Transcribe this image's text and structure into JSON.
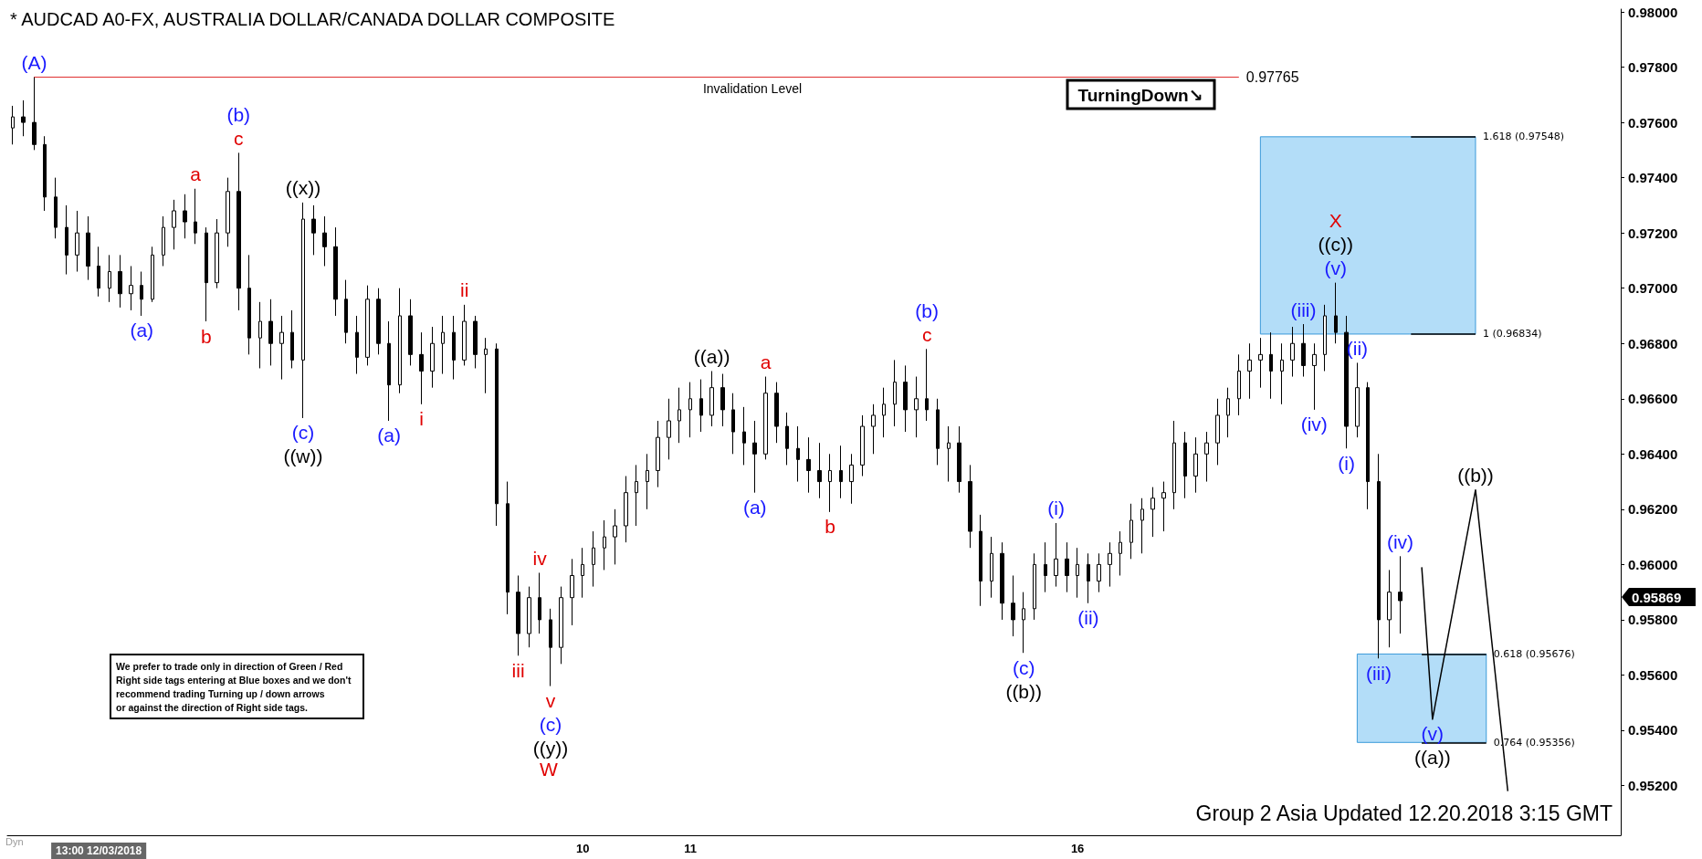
{
  "chart_data": {
    "type": "candlestick",
    "title": "* AUDCAD A0-FX, AUSTRALIA DOLLAR/CANADA DOLLAR COMPOSITE",
    "color": "#000000",
    "categories": [
      null,
      null,
      null,
      null,
      null,
      null,
      null,
      null,
      "13:00 12/03/2018",
      null,
      null,
      null,
      null,
      null,
      null,
      null,
      null,
      null,
      null,
      null,
      null,
      null,
      null,
      null,
      null,
      null,
      null,
      null,
      null,
      null,
      null,
      null,
      null,
      null,
      null,
      null,
      null,
      null,
      null,
      null,
      null,
      null,
      null,
      null,
      null,
      null,
      null,
      null,
      null,
      null,
      null,
      null,
      null,
      "10",
      null,
      null,
      null,
      null,
      null,
      null,
      null,
      null,
      null,
      "11",
      null,
      null,
      null,
      null,
      null,
      null,
      null,
      null,
      null,
      null,
      null,
      null,
      null,
      null,
      null,
      null,
      null,
      null,
      null,
      null,
      null,
      null,
      null,
      null,
      null,
      null,
      null,
      null,
      null,
      null,
      null,
      null,
      null,
      null,
      null,
      "16",
      null,
      null,
      null,
      null,
      null,
      null,
      null,
      null,
      null,
      null,
      null,
      null,
      null,
      null,
      null,
      null,
      null,
      null,
      null,
      null,
      null,
      null,
      null,
      null,
      null,
      null,
      null,
      null,
      null,
      null,
      null,
      null,
      null,
      null,
      null,
      null,
      null,
      null,
      null,
      null,
      null,
      null,
      null,
      null,
      null,
      null,
      null,
      null,
      null,
      null
    ],
    "ohlc": [
      [
        0.9758,
        0.9766,
        0.9752,
        0.9762
      ],
      [
        0.9762,
        0.9768,
        0.9755,
        0.976
      ],
      [
        0.976,
        0.97765,
        0.975,
        0.9752
      ],
      [
        0.9752,
        0.9755,
        0.9728,
        0.9733
      ],
      [
        0.9733,
        0.974,
        0.9718,
        0.9722
      ],
      [
        0.9722,
        0.973,
        0.9705,
        0.9712
      ],
      [
        0.9712,
        0.9728,
        0.9706,
        0.972
      ],
      [
        0.972,
        0.9726,
        0.9703,
        0.9708
      ],
      [
        0.9708,
        0.9715,
        0.9697,
        0.97
      ],
      [
        0.97,
        0.9712,
        0.9695,
        0.9706
      ],
      [
        0.9706,
        0.9712,
        0.9693,
        0.9698
      ],
      [
        0.9698,
        0.9708,
        0.9692,
        0.9701
      ],
      [
        0.9701,
        0.9706,
        0.969,
        0.9696
      ],
      [
        0.9696,
        0.9715,
        0.9695,
        0.9712
      ],
      [
        0.9712,
        0.9726,
        0.9708,
        0.9722
      ],
      [
        0.9722,
        0.9732,
        0.9714,
        0.9728
      ],
      [
        0.9728,
        0.9734,
        0.9718,
        0.9724
      ],
      [
        0.9724,
        0.9736,
        0.9716,
        0.972
      ],
      [
        0.972,
        0.9722,
        0.9688,
        0.9702
      ],
      [
        0.9702,
        0.9725,
        0.97,
        0.972
      ],
      [
        0.972,
        0.974,
        0.9715,
        0.9735
      ],
      [
        0.9735,
        0.9749,
        0.9692,
        0.97
      ],
      [
        0.97,
        0.9712,
        0.9676,
        0.9682
      ],
      [
        0.9682,
        0.9695,
        0.9671,
        0.9688
      ],
      [
        0.9688,
        0.9696,
        0.9672,
        0.968
      ],
      [
        0.968,
        0.969,
        0.9667,
        0.9684
      ],
      [
        0.9684,
        0.9692,
        0.9671,
        0.9674
      ],
      [
        0.9674,
        0.9731,
        0.9653,
        0.9725
      ],
      [
        0.9725,
        0.973,
        0.9712,
        0.972
      ],
      [
        0.972,
        0.9726,
        0.9708,
        0.9715
      ],
      [
        0.9715,
        0.9722,
        0.969,
        0.9696
      ],
      [
        0.9696,
        0.9703,
        0.968,
        0.9684
      ],
      [
        0.9684,
        0.969,
        0.9669,
        0.9675
      ],
      [
        0.9675,
        0.9701,
        0.9672,
        0.9696
      ],
      [
        0.9696,
        0.97,
        0.9676,
        0.968
      ],
      [
        0.968,
        0.9688,
        0.9652,
        0.9665
      ],
      [
        0.9665,
        0.97,
        0.9662,
        0.969
      ],
      [
        0.969,
        0.9696,
        0.9672,
        0.9676
      ],
      [
        0.9676,
        0.9684,
        0.9658,
        0.967
      ],
      [
        0.967,
        0.9686,
        0.9664,
        0.968
      ],
      [
        0.968,
        0.969,
        0.9669,
        0.9684
      ],
      [
        0.9684,
        0.969,
        0.9667,
        0.9674
      ],
      [
        0.9674,
        0.9694,
        0.9672,
        0.9688
      ],
      [
        0.9688,
        0.969,
        0.9671,
        0.9676
      ],
      [
        0.9676,
        0.9682,
        0.9662,
        0.9678
      ],
      [
        0.9678,
        0.968,
        0.9614,
        0.9622
      ],
      [
        0.9622,
        0.963,
        0.9582,
        0.959
      ],
      [
        0.959,
        0.9596,
        0.9567,
        0.9575
      ],
      [
        0.9575,
        0.9592,
        0.957,
        0.9588
      ],
      [
        0.9588,
        0.9597,
        0.9575,
        0.958
      ],
      [
        0.958,
        0.9584,
        0.9556,
        0.957
      ],
      [
        0.957,
        0.9592,
        0.9564,
        0.9588
      ],
      [
        0.9588,
        0.9602,
        0.9578,
        0.9596
      ],
      [
        0.9596,
        0.9606,
        0.9588,
        0.96
      ],
      [
        0.96,
        0.9612,
        0.9592,
        0.9606
      ],
      [
        0.9606,
        0.9616,
        0.9598,
        0.961
      ],
      [
        0.961,
        0.962,
        0.96,
        0.9614
      ],
      [
        0.9614,
        0.9632,
        0.9608,
        0.9626
      ],
      [
        0.9626,
        0.9636,
        0.9614,
        0.963
      ],
      [
        0.963,
        0.964,
        0.962,
        0.9634
      ],
      [
        0.9634,
        0.9652,
        0.9628,
        0.9646
      ],
      [
        0.9646,
        0.966,
        0.9638,
        0.9652
      ],
      [
        0.9652,
        0.9664,
        0.9644,
        0.9656
      ],
      [
        0.9656,
        0.9666,
        0.9646,
        0.966
      ],
      [
        0.966,
        0.9667,
        0.9648,
        0.9654
      ],
      [
        0.9654,
        0.967,
        0.965,
        0.9664
      ],
      [
        0.9664,
        0.9669,
        0.965,
        0.9656
      ],
      [
        0.9656,
        0.9662,
        0.964,
        0.9648
      ],
      [
        0.9648,
        0.9657,
        0.9636,
        0.9644
      ],
      [
        0.9644,
        0.9652,
        0.9626,
        0.964
      ],
      [
        0.964,
        0.9668,
        0.9638,
        0.9662
      ],
      [
        0.9662,
        0.9666,
        0.9644,
        0.965
      ],
      [
        0.965,
        0.9655,
        0.9636,
        0.9642
      ],
      [
        0.9642,
        0.965,
        0.963,
        0.9638
      ],
      [
        0.9638,
        0.9646,
        0.9626,
        0.9634
      ],
      [
        0.9634,
        0.9644,
        0.9624,
        0.963
      ],
      [
        0.963,
        0.964,
        0.9619,
        0.9634
      ],
      [
        0.9634,
        0.9643,
        0.9624,
        0.963
      ],
      [
        0.963,
        0.964,
        0.9622,
        0.9636
      ],
      [
        0.9636,
        0.9654,
        0.9632,
        0.965
      ],
      [
        0.965,
        0.9658,
        0.964,
        0.9654
      ],
      [
        0.9654,
        0.9664,
        0.9646,
        0.9658
      ],
      [
        0.9658,
        0.9674,
        0.965,
        0.9666
      ],
      [
        0.9666,
        0.9672,
        0.9648,
        0.9656
      ],
      [
        0.9656,
        0.9668,
        0.9646,
        0.966
      ],
      [
        0.966,
        0.9678,
        0.9652,
        0.9656
      ],
      [
        0.9656,
        0.966,
        0.9636,
        0.9642
      ],
      [
        0.9642,
        0.965,
        0.963,
        0.9644
      ],
      [
        0.9644,
        0.965,
        0.9626,
        0.963
      ],
      [
        0.963,
        0.9636,
        0.9606,
        0.9612
      ],
      [
        0.9612,
        0.9618,
        0.9585,
        0.9594
      ],
      [
        0.9594,
        0.961,
        0.9588,
        0.9604
      ],
      [
        0.9604,
        0.9608,
        0.958,
        0.9586
      ],
      [
        0.9586,
        0.9596,
        0.9574,
        0.958
      ],
      [
        0.958,
        0.959,
        0.9568,
        0.9584
      ],
      [
        0.9584,
        0.9604,
        0.958,
        0.96
      ],
      [
        0.96,
        0.9608,
        0.959,
        0.9596
      ],
      [
        0.9596,
        0.9615,
        0.9592,
        0.9602
      ],
      [
        0.9602,
        0.9608,
        0.959,
        0.9596
      ],
      [
        0.9596,
        0.9606,
        0.9588,
        0.96
      ],
      [
        0.96,
        0.9604,
        0.9586,
        0.9594
      ],
      [
        0.9594,
        0.9604,
        0.959,
        0.96
      ],
      [
        0.96,
        0.9608,
        0.9592,
        0.9604
      ],
      [
        0.9604,
        0.9612,
        0.9596,
        0.9608
      ],
      [
        0.9608,
        0.9622,
        0.9602,
        0.9616
      ],
      [
        0.9616,
        0.9624,
        0.9604,
        0.962
      ],
      [
        0.962,
        0.9628,
        0.961,
        0.9624
      ],
      [
        0.9624,
        0.963,
        0.9612,
        0.9626
      ],
      [
        0.9626,
        0.9652,
        0.962,
        0.9644
      ],
      [
        0.9644,
        0.9648,
        0.9624,
        0.9632
      ],
      [
        0.9632,
        0.9646,
        0.9626,
        0.964
      ],
      [
        0.964,
        0.9648,
        0.963,
        0.9644
      ],
      [
        0.9644,
        0.966,
        0.9636,
        0.9654
      ],
      [
        0.9654,
        0.9664,
        0.9646,
        0.966
      ],
      [
        0.966,
        0.9676,
        0.9654,
        0.967
      ],
      [
        0.967,
        0.968,
        0.966,
        0.9674
      ],
      [
        0.9674,
        0.9682,
        0.9664,
        0.9676
      ],
      [
        0.9676,
        0.9684,
        0.966,
        0.967
      ],
      [
        0.967,
        0.968,
        0.9658,
        0.9674
      ],
      [
        0.9674,
        0.9686,
        0.9668,
        0.968
      ],
      [
        0.968,
        0.9687,
        0.9668,
        0.9672
      ],
      [
        0.9672,
        0.968,
        0.9656,
        0.9676
      ],
      [
        0.9676,
        0.9694,
        0.967,
        0.969
      ],
      [
        0.969,
        0.9702,
        0.968,
        0.9684
      ],
      [
        0.9684,
        0.969,
        0.9642,
        0.965
      ],
      [
        0.965,
        0.9673,
        0.9646,
        0.9664
      ],
      [
        0.9664,
        0.9666,
        0.962,
        0.963
      ],
      [
        0.963,
        0.964,
        0.9566,
        0.958
      ],
      [
        0.958,
        0.9598,
        0.957,
        0.959
      ],
      [
        0.959,
        0.9603,
        0.9575,
        0.95869
      ],
      null,
      null,
      null,
      null,
      null,
      null,
      null,
      null,
      null,
      null,
      null,
      null,
      null,
      null,
      null,
      null,
      null,
      null,
      null,
      null
    ],
    "series": [
      {
        "type": "line",
        "color": "#000000",
        "values": [
          null,
          null,
          null,
          null,
          null,
          null,
          null,
          null,
          null,
          null,
          null,
          null,
          null,
          null,
          null,
          null,
          null,
          null,
          null,
          null,
          null,
          null,
          null,
          null,
          null,
          null,
          null,
          null,
          null,
          null,
          null,
          null,
          null,
          null,
          null,
          null,
          null,
          null,
          null,
          null,
          null,
          null,
          null,
          null,
          null,
          null,
          null,
          null,
          null,
          null,
          null,
          null,
          null,
          null,
          null,
          null,
          null,
          null,
          null,
          null,
          null,
          null,
          null,
          null,
          null,
          null,
          null,
          null,
          null,
          null,
          null,
          null,
          null,
          null,
          null,
          null,
          null,
          null,
          null,
          null,
          null,
          null,
          null,
          null,
          null,
          null,
          null,
          null,
          null,
          null,
          null,
          null,
          null,
          null,
          null,
          null,
          null,
          null,
          null,
          null,
          null,
          null,
          null,
          null,
          null,
          null,
          null,
          null,
          null,
          null,
          null,
          null,
          null,
          null,
          null,
          null,
          null,
          null,
          null,
          null,
          null,
          null,
          null,
          null,
          null,
          null,
          null,
          null,
          null,
          null,
          null,
          0.9599,
          0.9544,
          null,
          null,
          null,
          0.9627,
          null,
          null,
          0.9518,
          null,
          null,
          null,
          null,
          null,
          null,
          null,
          null,
          null,
          null
        ]
      }
    ],
    "ylim": [
      0.9502,
      0.9801
    ],
    "yticks": [
      {
        "value": 0.952,
        "label": "0.95200"
      },
      {
        "value": 0.954,
        "label": "0.95400"
      },
      {
        "value": 0.956,
        "label": "0.95600"
      },
      {
        "value": 0.958,
        "label": "0.95800"
      },
      {
        "value": 0.96,
        "label": "0.96000"
      },
      {
        "value": 0.962,
        "label": "0.96200"
      },
      {
        "value": 0.964,
        "label": "0.96400"
      },
      {
        "value": 0.966,
        "label": "0.96600"
      },
      {
        "value": 0.968,
        "label": "0.96800"
      },
      {
        "value": 0.97,
        "label": "0.97000"
      },
      {
        "value": 0.972,
        "label": "0.97200"
      },
      {
        "value": 0.974,
        "label": "0.97400"
      },
      {
        "value": 0.976,
        "label": "0.97600"
      },
      {
        "value": 0.978,
        "label": "0.97800"
      },
      {
        "value": 0.98,
        "label": "0.98000"
      }
    ],
    "ref_lines": [
      {
        "axis": "y",
        "value": 0.97765,
        "label": "0.97765",
        "color": "#e03030"
      },
      {
        "axis": "y",
        "value": 0.97548,
        "label": "1.618 (0.97548)",
        "color": "#000000"
      },
      {
        "axis": "y",
        "value": 0.96834,
        "label": "1 (0.96834)",
        "color": "#000000"
      },
      {
        "axis": "y",
        "value": 0.95676,
        "label": "0.618 (0.95676)",
        "color": "#000000"
      },
      {
        "axis": "y",
        "value": 0.95356,
        "label": "0.764 (0.95356)",
        "color": "#000000"
      }
    ],
    "bands": [
      {
        "axis": "y",
        "from": 0.96834,
        "to": 0.97548,
        "color": "#b3ddf8"
      },
      {
        "axis": "y",
        "from": 0.95356,
        "to": 0.95676,
        "color": "#b3ddf8"
      }
    ],
    "annotations": [
      {
        "text": "(A)",
        "y": 0.97765
      },
      {
        "text": "(a)",
        "y": 0.969
      },
      {
        "text": "a",
        "y": 0.9736
      },
      {
        "text": "b",
        "y": 0.9688
      },
      {
        "text": "c",
        "y": 0.9749
      },
      {
        "text": "(b)",
        "y": 0.9749
      },
      {
        "text": "((x))",
        "y": 0.9731
      },
      {
        "text": "(c)",
        "y": 0.9653
      },
      {
        "text": "((w))",
        "y": 0.9653
      },
      {
        "text": "(a)",
        "y": 0.9652
      },
      {
        "text": "i",
        "y": 0.9658
      },
      {
        "text": "ii",
        "y": 0.9694
      },
      {
        "text": "iii",
        "y": 0.9567
      },
      {
        "text": "iv",
        "y": 0.9597
      },
      {
        "text": "v",
        "y": 0.9556
      },
      {
        "text": "(c)",
        "y": 0.9556
      },
      {
        "text": "((y))",
        "y": 0.9556
      },
      {
        "text": "((a))",
        "y": 0.967
      },
      {
        "text": "(a)",
        "y": 0.9626
      },
      {
        "text": "a",
        "y": 0.9668
      },
      {
        "text": "b",
        "y": 0.9619
      },
      {
        "text": "c",
        "y": 0.9678
      },
      {
        "text": "(b)",
        "y": 0.9678
      },
      {
        "text": "(c)",
        "y": 0.9568
      },
      {
        "text": "((b))",
        "y": 0.9568
      },
      {
        "text": "(i)",
        "y": 0.9615
      },
      {
        "text": "(ii)",
        "y": 0.9586
      },
      {
        "text": "(iii)",
        "y": 0.9687
      },
      {
        "text": "(iv)",
        "y": 0.9656
      },
      {
        "text": "(v)",
        "y": 0.9702
      },
      {
        "text": "((c))",
        "y": 0.9702
      },
      {
        "text": "X",
        "y": 0.9702
      },
      {
        "text": "(i)",
        "y": 0.9642
      },
      {
        "text": "(ii)",
        "y": 0.9673
      },
      {
        "text": "(iii)",
        "y": 0.9566
      },
      {
        "text": "(iv)",
        "y": 0.9603
      },
      {
        "text": "(v)",
        "y": 0.9544
      },
      {
        "text": "((a))",
        "y": 0.9544
      },
      {
        "text": "((b))",
        "y": 0.9627
      },
      "W",
      "0.95869",
      "Invalidation Level",
      "TurningDown↘",
      "We prefer to trade only in direction of Green / Red\nRight side tags entering at Blue boxes and we don't\nrecommend trading Turning up / down arrows\nor against the direction of Right side tags.",
      "Group 2 Asia Updated 12.20.2018 3:15 GMT",
      "Dyn"
    ]
  }
}
